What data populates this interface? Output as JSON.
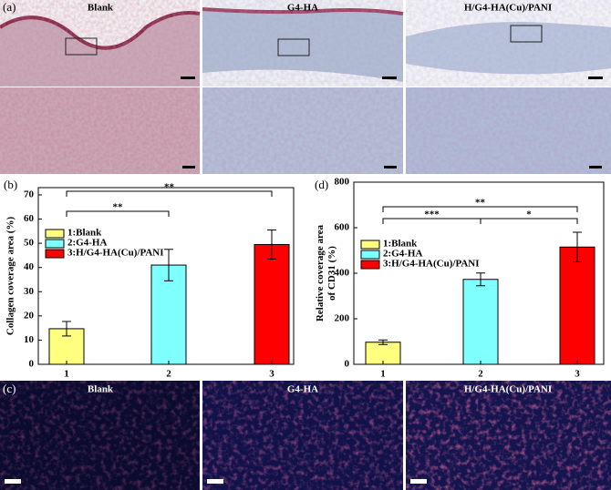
{
  "panels": {
    "a": {
      "label": "(a)",
      "titles": [
        "Blank",
        "G4-HA",
        "H/G4-HA(Cu)/PANI"
      ]
    },
    "c": {
      "label": "(c)",
      "titles": [
        "Blank",
        "G4-HA",
        "H/G4-HA(Cu)/PANI"
      ]
    }
  },
  "chart_data": [
    {
      "type": "bar",
      "panel_label": "(b)",
      "ylabel": [
        "Collagen coverage area (%)"
      ],
      "categories": [
        "1",
        "2",
        "3"
      ],
      "values": [
        14.7,
        41,
        49.5
      ],
      "errors": [
        3,
        6.5,
        6
      ],
      "colors": [
        "#ffff80",
        "#80ffff",
        "#ff0000"
      ],
      "legend": [
        "1:Blank",
        "2:G4-HA",
        "3:H/G4-HA(Cu)/PANI"
      ],
      "ylim": [
        0,
        73
      ],
      "yticks": [
        0,
        10,
        20,
        30,
        40,
        50,
        60,
        70
      ],
      "annotations": [
        "**",
        "**"
      ]
    },
    {
      "type": "bar",
      "panel_label": "(d)",
      "ylabel": [
        "Relative coverage area",
        "of CD31 (%)"
      ],
      "categories": [
        "1",
        "2",
        "3"
      ],
      "values": [
        97,
        373,
        515
      ],
      "errors": [
        10,
        28,
        65
      ],
      "colors": [
        "#ffff80",
        "#80ffff",
        "#ff0000"
      ],
      "legend": [
        "1:Blank",
        "2:G4-HA",
        "3:H/G4-HA(Cu)/PANI"
      ],
      "ylim": [
        0,
        800
      ],
      "yticks": [
        0,
        200,
        400,
        600,
        800
      ],
      "annotations": [
        "***",
        "*",
        "**"
      ]
    }
  ]
}
